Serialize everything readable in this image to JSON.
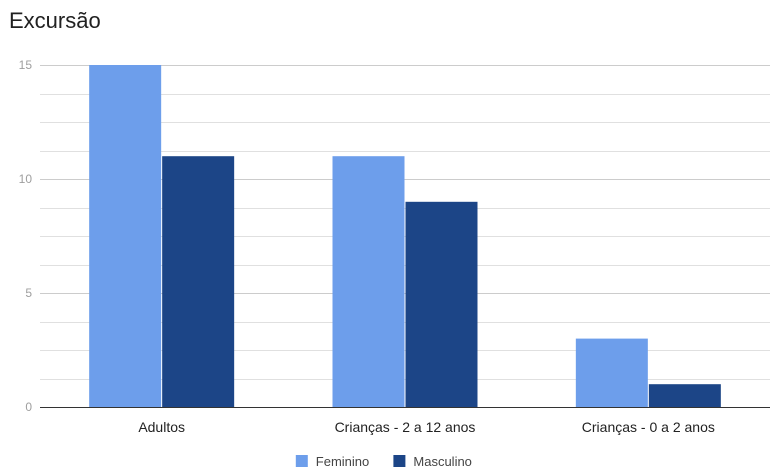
{
  "chart_data": {
    "type": "bar",
    "title": "Excursão",
    "categories": [
      "Adultos",
      "Crianças - 2 a 12 anos",
      "Crianças - 0 a 2 anos"
    ],
    "series": [
      {
        "name": "Feminino",
        "values": [
          15,
          11,
          3
        ],
        "color": "#6d9eeb"
      },
      {
        "name": "Masculino",
        "values": [
          11,
          9,
          1
        ],
        "color": "#1c4587"
      }
    ],
    "yticks": [
      0,
      5,
      10,
      15
    ],
    "ylim": [
      0,
      15
    ],
    "minor_gridlines": true,
    "legend_position": "bottom",
    "xlabel": "",
    "ylabel": ""
  }
}
